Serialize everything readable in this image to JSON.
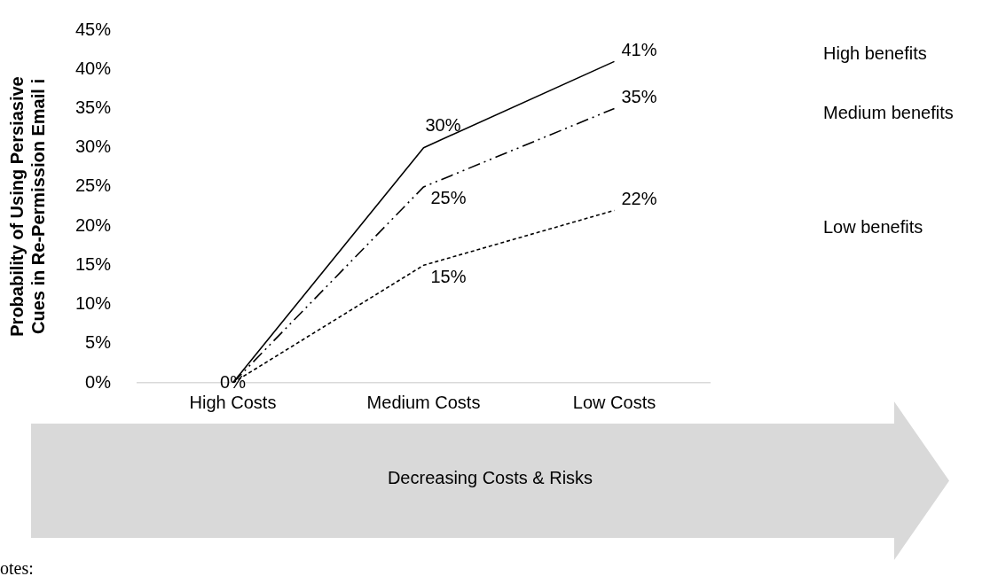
{
  "chart_data": {
    "type": "line",
    "ylabel": "Probability of Using Persiasive\nCues in Re-Permission Email i",
    "categories": [
      "High Costs",
      "Medium Costs",
      "Low Costs"
    ],
    "series": [
      {
        "name": "High benefits",
        "color": "#000000",
        "line_style": "solid",
        "values": [
          0,
          30,
          41
        ],
        "value_labels": [
          "0%",
          "30%",
          "41%"
        ]
      },
      {
        "name": "Medium benefits",
        "color": "#000000",
        "line_style": "dashed",
        "values": [
          0,
          25,
          35
        ],
        "value_labels": [
          null,
          "25%",
          "35%"
        ]
      },
      {
        "name": "Low benefits",
        "color": "#000000",
        "line_style": "dotted",
        "values": [
          0,
          15,
          22
        ],
        "value_labels": [
          null,
          "15%",
          "22%"
        ]
      }
    ],
    "ylim": [
      0,
      45
    ],
    "yticks": [
      {
        "value": 0,
        "label": "0%"
      },
      {
        "value": 5,
        "label": "5%"
      },
      {
        "value": 10,
        "label": "10%"
      },
      {
        "value": 15,
        "label": "15%"
      },
      {
        "value": 20,
        "label": "20%"
      },
      {
        "value": 25,
        "label": "25%"
      },
      {
        "value": 30,
        "label": "30%"
      },
      {
        "value": 35,
        "label": "35%"
      },
      {
        "value": 40,
        "label": "40%"
      },
      {
        "value": 45,
        "label": "45%"
      }
    ],
    "marker": "none",
    "annotations": [
      "Decreasing Costs & Risks",
      "otes:"
    ]
  }
}
